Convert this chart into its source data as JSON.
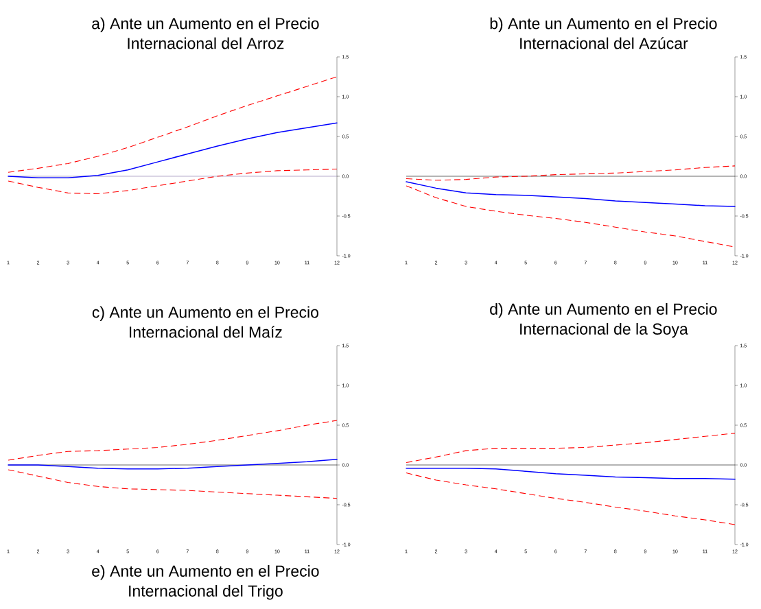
{
  "chart_data": [
    {
      "type": "line",
      "title": "a)  Ante un Aumento en el Precio Internacional del Arroz",
      "x": [
        1,
        2,
        3,
        4,
        5,
        6,
        7,
        8,
        9,
        10,
        11,
        12
      ],
      "xlim": [
        1,
        12
      ],
      "xticks": [
        1,
        2,
        3,
        4,
        5,
        6,
        7,
        8,
        9,
        10,
        11,
        12
      ],
      "ylim": [
        -1,
        1.5
      ],
      "yticks": [
        {
          "value": -1,
          "label": "-1.0"
        },
        {
          "value": -0.5,
          "label": "-0.5"
        },
        {
          "value": 0,
          "label": "0.0"
        },
        {
          "value": 0.5,
          "label": "0.5"
        },
        {
          "value": 1,
          "label": "1.0"
        },
        {
          "value": 1.5,
          "label": "1.5"
        }
      ],
      "ref_lines": [
        {
          "axis": "y",
          "value": 0,
          "color": "#7f6fa8"
        }
      ],
      "series": [
        {
          "color": "#ff0000",
          "line_style": "dashed",
          "values": [
            0.05,
            0.1,
            0.16,
            0.25,
            0.36,
            0.49,
            0.62,
            0.76,
            0.89,
            1.01,
            1.13,
            1.25
          ]
        },
        {
          "color": "#0000ff",
          "line_style": "solid",
          "values": [
            0,
            -0.02,
            -0.02,
            0.01,
            0.08,
            0.18,
            0.28,
            0.38,
            0.47,
            0.55,
            0.61,
            0.67
          ]
        },
        {
          "color": "#ff0000",
          "line_style": "dashed",
          "values": [
            -0.06,
            -0.14,
            -0.21,
            -0.22,
            -0.18,
            -0.12,
            -0.06,
            0.0,
            0.04,
            0.07,
            0.08,
            0.09
          ]
        }
      ]
    },
    {
      "type": "line",
      "title": "b)  Ante un Aumento en el Precio Internacional del Azúcar",
      "x": [
        1,
        2,
        3,
        4,
        5,
        6,
        7,
        8,
        9,
        10,
        11,
        12
      ],
      "xlim": [
        1,
        12
      ],
      "xticks": [
        1,
        2,
        3,
        4,
        5,
        6,
        7,
        8,
        9,
        10,
        11,
        12
      ],
      "ylim": [
        -1,
        1.5
      ],
      "yticks": [
        {
          "value": -1,
          "label": "-1.0"
        },
        {
          "value": -0.5,
          "label": "-0.5"
        },
        {
          "value": 0,
          "label": "0.0"
        },
        {
          "value": 0.5,
          "label": "0.5"
        },
        {
          "value": 1,
          "label": "1.0"
        },
        {
          "value": 1.5,
          "label": "1.5"
        }
      ],
      "ref_lines": [
        {
          "axis": "y",
          "value": 0,
          "color": "#000000"
        }
      ],
      "series": [
        {
          "color": "#ff0000",
          "line_style": "dashed",
          "values": [
            -0.03,
            -0.05,
            -0.04,
            -0.01,
            0.0,
            0.02,
            0.03,
            0.04,
            0.06,
            0.08,
            0.11,
            0.13
          ]
        },
        {
          "color": "#0000ff",
          "line_style": "solid",
          "values": [
            -0.07,
            -0.15,
            -0.21,
            -0.23,
            -0.24,
            -0.26,
            -0.28,
            -0.31,
            -0.33,
            -0.35,
            -0.37,
            -0.38
          ]
        },
        {
          "color": "#ff0000",
          "line_style": "dashed",
          "values": [
            -0.12,
            -0.27,
            -0.38,
            -0.44,
            -0.49,
            -0.53,
            -0.58,
            -0.64,
            -0.7,
            -0.75,
            -0.82,
            -0.89
          ]
        }
      ]
    },
    {
      "type": "line",
      "title": "c)  Ante un Aumento en el Precio Internacional del Maíz",
      "x": [
        1,
        2,
        3,
        4,
        5,
        6,
        7,
        8,
        9,
        10,
        11,
        12
      ],
      "xlim": [
        1,
        12
      ],
      "xticks": [
        1,
        2,
        3,
        4,
        5,
        6,
        7,
        8,
        9,
        10,
        11,
        12
      ],
      "ylim": [
        -1,
        1.5
      ],
      "yticks": [
        {
          "value": -1,
          "label": "-1.0"
        },
        {
          "value": -0.5,
          "label": "-0.5"
        },
        {
          "value": 0,
          "label": "0.0"
        },
        {
          "value": 0.5,
          "label": "0.5"
        },
        {
          "value": 1,
          "label": "1.0"
        },
        {
          "value": 1.5,
          "label": "1.5"
        }
      ],
      "ref_lines": [
        {
          "axis": "y",
          "value": 0,
          "color": "#000000"
        }
      ],
      "series": [
        {
          "color": "#ff0000",
          "line_style": "dashed",
          "values": [
            0.06,
            0.12,
            0.17,
            0.18,
            0.2,
            0.22,
            0.26,
            0.31,
            0.37,
            0.43,
            0.5,
            0.56
          ]
        },
        {
          "color": "#0000ff",
          "line_style": "solid",
          "values": [
            0.0,
            0.0,
            -0.02,
            -0.04,
            -0.05,
            -0.05,
            -0.04,
            -0.02,
            0.0,
            0.02,
            0.04,
            0.07
          ]
        },
        {
          "color": "#ff0000",
          "line_style": "dashed",
          "values": [
            -0.06,
            -0.14,
            -0.22,
            -0.27,
            -0.3,
            -0.31,
            -0.32,
            -0.34,
            -0.36,
            -0.38,
            -0.4,
            -0.42
          ]
        }
      ]
    },
    {
      "type": "line",
      "title": "d)  Ante un Aumento en el Precio Internacional de la Soya",
      "x": [
        1,
        2,
        3,
        4,
        5,
        6,
        7,
        8,
        9,
        10,
        11,
        12
      ],
      "xlim": [
        1,
        12
      ],
      "xticks": [
        1,
        2,
        3,
        4,
        5,
        6,
        7,
        8,
        9,
        10,
        11,
        12
      ],
      "ylim": [
        -1,
        1.5
      ],
      "yticks": [
        {
          "value": -1,
          "label": "-1.0"
        },
        {
          "value": -0.5,
          "label": "-0.5"
        },
        {
          "value": 0,
          "label": "0.0"
        },
        {
          "value": 0.5,
          "label": "0.5"
        },
        {
          "value": 1,
          "label": "1.0"
        },
        {
          "value": 1.5,
          "label": "1.5"
        }
      ],
      "ref_lines": [
        {
          "axis": "y",
          "value": 0,
          "color": "#000000"
        }
      ],
      "series": [
        {
          "color": "#ff0000",
          "line_style": "dashed",
          "values": [
            0.03,
            0.1,
            0.18,
            0.21,
            0.21,
            0.21,
            0.22,
            0.25,
            0.28,
            0.32,
            0.36,
            0.4
          ]
        },
        {
          "color": "#0000ff",
          "line_style": "solid",
          "values": [
            -0.04,
            -0.04,
            -0.04,
            -0.05,
            -0.08,
            -0.11,
            -0.13,
            -0.15,
            -0.16,
            -0.17,
            -0.17,
            -0.18
          ]
        },
        {
          "color": "#ff0000",
          "line_style": "dashed",
          "values": [
            -0.1,
            -0.19,
            -0.25,
            -0.3,
            -0.36,
            -0.42,
            -0.47,
            -0.53,
            -0.58,
            -0.64,
            -0.69,
            -0.75
          ]
        }
      ]
    },
    {
      "type": "other",
      "title": "e)  Ante un Aumento en el Precio Internacional del Trigo"
    }
  ]
}
